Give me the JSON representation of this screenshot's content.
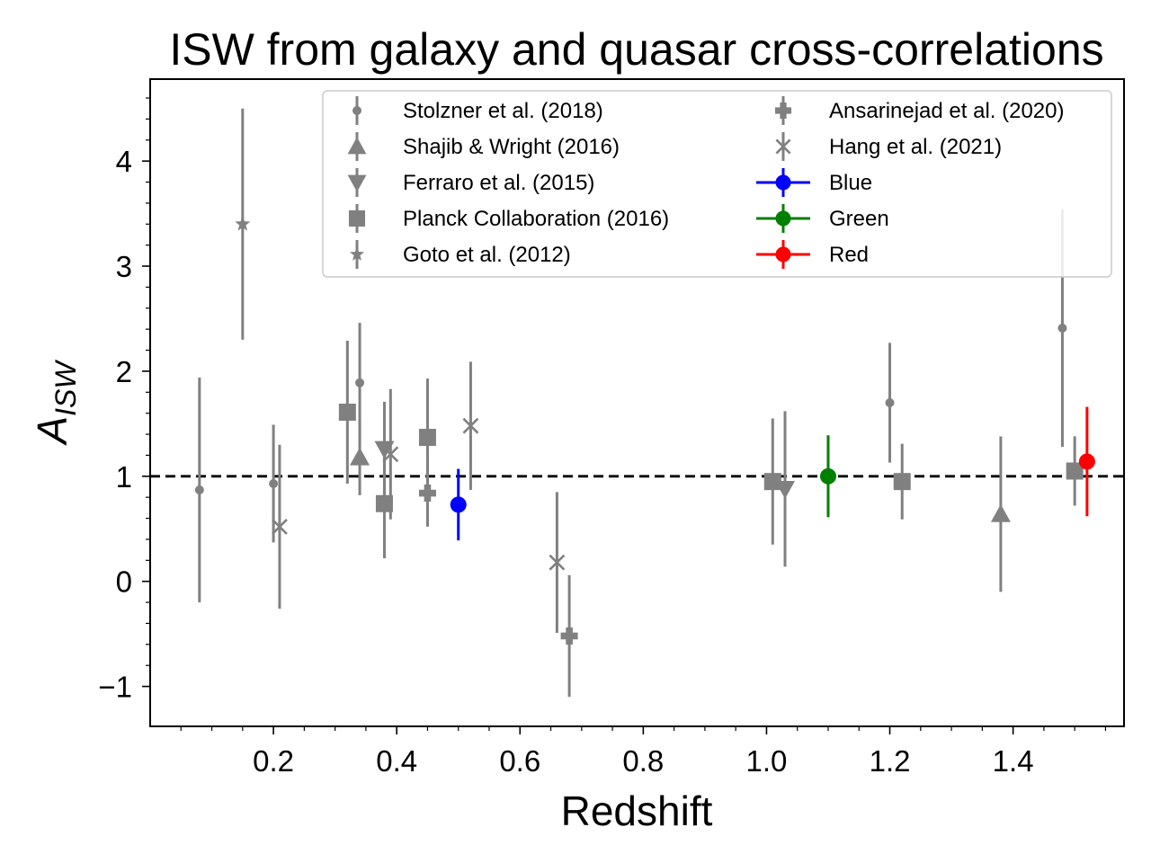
{
  "chart_data": {
    "type": "scatter",
    "title": "ISW from galaxy and quasar cross-correlations",
    "xlabel": "Redshift",
    "ylabel_main": "A",
    "ylabel_sub": "ISW",
    "xlim": [
      0.0,
      1.58
    ],
    "ylim": [
      -1.38,
      4.78
    ],
    "xticks": [
      0.2,
      0.4,
      0.6,
      0.8,
      1.0,
      1.2,
      1.4
    ],
    "xtick_labels": [
      "0.2",
      "0.4",
      "0.6",
      "0.8",
      "1.0",
      "1.2",
      "1.4"
    ],
    "yticks": [
      -1,
      0,
      1,
      2,
      3,
      4
    ],
    "ytick_labels": [
      "−1",
      "0",
      "1",
      "2",
      "3",
      "4"
    ],
    "reference_line": {
      "y": 1,
      "style": "dashed",
      "color": "#000000"
    },
    "legend_position": "upper-right",
    "series": [
      {
        "name": "Stolzner et al. (2018)",
        "marker": "smallcircle",
        "color": "#808080",
        "points": [
          {
            "x": 0.08,
            "y": 0.87,
            "err": 1.07
          },
          {
            "x": 0.2,
            "y": 0.93,
            "err": 0.56
          },
          {
            "x": 0.34,
            "y": 1.89,
            "err": 0.57
          },
          {
            "x": 1.2,
            "y": 1.7,
            "err": 0.57
          },
          {
            "x": 1.48,
            "y": 2.41,
            "err": 1.13
          }
        ]
      },
      {
        "name": "Shajib & Wright (2016)",
        "marker": "triangle-up",
        "color": "#808080",
        "points": [
          {
            "x": 0.34,
            "y": 1.18,
            "err": 0.36
          },
          {
            "x": 1.38,
            "y": 0.64,
            "err": 0.74
          }
        ]
      },
      {
        "name": "Ferraro et al. (2015)",
        "marker": "triangle-down",
        "color": "#808080",
        "points": [
          {
            "x": 0.38,
            "y": 1.26,
            "err": 0.45
          },
          {
            "x": 1.03,
            "y": 0.88,
            "err": 0.74
          }
        ]
      },
      {
        "name": "Planck Collaboration (2016)",
        "marker": "square",
        "color": "#808080",
        "points": [
          {
            "x": 0.32,
            "y": 1.61,
            "err": 0.68
          },
          {
            "x": 0.38,
            "y": 0.74,
            "err": 0.52
          },
          {
            "x": 0.45,
            "y": 1.37,
            "err": 0.56
          },
          {
            "x": 1.01,
            "y": 0.95,
            "err": 0.6
          },
          {
            "x": 1.22,
            "y": 0.95,
            "err": 0.36
          },
          {
            "x": 1.5,
            "y": 1.05,
            "err": 0.33
          }
        ]
      },
      {
        "name": "Goto et al. (2012)",
        "marker": "star",
        "color": "#808080",
        "points": [
          {
            "x": 0.15,
            "y": 3.4,
            "err": 1.1
          }
        ]
      },
      {
        "name": "Ansarinejad et al. (2020)",
        "marker": "plus",
        "color": "#808080",
        "points": [
          {
            "x": 0.45,
            "y": 0.84,
            "err": 0.32
          },
          {
            "x": 0.68,
            "y": -0.52,
            "err": 0.58
          }
        ]
      },
      {
        "name": "Hang et al. (2021)",
        "marker": "x",
        "color": "#808080",
        "points": [
          {
            "x": 0.21,
            "y": 0.52,
            "err": 0.78
          },
          {
            "x": 0.39,
            "y": 1.21,
            "err": 0.62
          },
          {
            "x": 0.52,
            "y": 1.48,
            "err": 0.61
          },
          {
            "x": 0.66,
            "y": 0.18,
            "err": 0.67
          }
        ]
      },
      {
        "name": "Blue",
        "marker": "circle",
        "color": "#0000ff",
        "points": [
          {
            "x": 0.5,
            "y": 0.73,
            "err": 0.34
          }
        ]
      },
      {
        "name": "Green",
        "marker": "circle",
        "color": "#008000",
        "points": [
          {
            "x": 1.1,
            "y": 1.0,
            "err": 0.39
          }
        ]
      },
      {
        "name": "Red",
        "marker": "circle",
        "color": "#ff0000",
        "points": [
          {
            "x": 1.52,
            "y": 1.14,
            "err": 0.52
          }
        ]
      }
    ]
  }
}
